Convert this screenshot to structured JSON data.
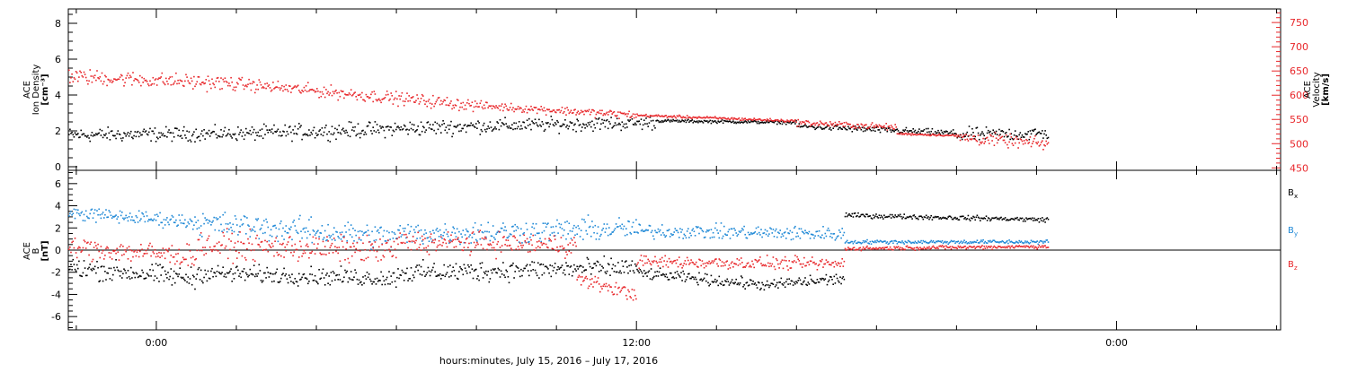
{
  "chart_data": [
    {
      "type": "scatter",
      "panel": "top",
      "ylabel_lines": [
        "ACE",
        "Ion Density"
      ],
      "ylabel_unit": "[cm⁻³]",
      "y2label_lines": [
        "ACE",
        "Velocity"
      ],
      "y2label_unit": "[km/s]",
      "ylim": [
        -0.2,
        8.8
      ],
      "y2lim": [
        445,
        778
      ],
      "yticks": [
        0,
        2,
        4,
        6,
        8
      ],
      "y2ticks": [
        450,
        500,
        550,
        600,
        650,
        700,
        750
      ],
      "series": [
        {
          "name": "ACE Ion Density",
          "axis": "left",
          "color": "#000000",
          "segments": [
            {
              "t": [
                -2.2,
                2.5
              ],
              "y": [
                1.8,
                1.9
              ],
              "noise": 0.55
            },
            {
              "t": [
                2.5,
                8.0
              ],
              "y": [
                1.9,
                2.3
              ],
              "noise": 0.6
            },
            {
              "t": [
                8.0,
                12.5
              ],
              "y": [
                2.3,
                2.5
              ],
              "noise": 0.55
            },
            {
              "t": [
                12.5,
                16.0
              ],
              "y": [
                2.6,
                2.5
              ],
              "noise": 0.12
            },
            {
              "t": [
                16.0,
                20.0
              ],
              "y": [
                2.3,
                1.9
              ],
              "noise": 0.25
            },
            {
              "t": [
                20.0,
                22.3
              ],
              "y": [
                1.8,
                1.9
              ],
              "noise": 0.55
            }
          ]
        },
        {
          "name": "ACE Velocity",
          "axis": "right",
          "color": "#e8262a",
          "segments": [
            {
              "t": [
                -2.2,
                2.0
              ],
              "y": [
                640,
                625
              ],
              "noise": 22
            },
            {
              "t": [
                2.0,
                8.0
              ],
              "y": [
                625,
                580
              ],
              "noise": 18
            },
            {
              "t": [
                8.0,
                12.0
              ],
              "y": [
                580,
                560
              ],
              "noise": 12
            },
            {
              "t": [
                12.0,
                16.0
              ],
              "y": [
                560,
                548
              ],
              "noise": 4
            },
            {
              "t": [
                16.0,
                18.5
              ],
              "y": [
                545,
                535
              ],
              "noise": 9
            },
            {
              "t": [
                18.5,
                20.0
              ],
              "y": [
                522,
                518
              ],
              "noise": 3
            },
            {
              "t": [
                20.0,
                22.3
              ],
              "y": [
                515,
                500
              ],
              "noise": 18
            }
          ]
        }
      ]
    },
    {
      "type": "scatter",
      "panel": "bottom",
      "ylabel_lines": [
        "ACE",
        "B"
      ],
      "ylabel_unit": "[nT]",
      "ylim": [
        -7.2,
        7.2
      ],
      "yticks": [
        -6,
        -4,
        -2,
        0,
        2,
        4,
        6
      ],
      "zero_line": true,
      "series": [
        {
          "name": "B",
          "subscript": "x",
          "color": "#000000",
          "segments": [
            {
              "t": [
                -2.2,
                1.0
              ],
              "y": [
                -1.5,
                -2.5
              ],
              "noise": 1.3
            },
            {
              "t": [
                1.0,
                6.0
              ],
              "y": [
                -2.0,
                -2.5
              ],
              "noise": 1.1
            },
            {
              "t": [
                6.0,
                12.0
              ],
              "y": [
                -2.0,
                -1.5
              ],
              "noise": 1.3
            },
            {
              "t": [
                12.0,
                15.5
              ],
              "y": [
                -2.0,
                -3.2
              ],
              "noise": 0.7
            },
            {
              "t": [
                15.5,
                17.2
              ],
              "y": [
                -3.0,
                -2.5
              ],
              "noise": 0.8
            },
            {
              "t": [
                17.2,
                22.3
              ],
              "y": [
                3.2,
                2.8
              ],
              "noise": 0.3
            }
          ]
        },
        {
          "name": "B",
          "subscript": "y",
          "color": "#1e88d6",
          "segments": [
            {
              "t": [
                -2.2,
                1.0
              ],
              "y": [
                3.4,
                2.6
              ],
              "noise": 0.9
            },
            {
              "t": [
                1.0,
                6.0
              ],
              "y": [
                2.5,
                1.2
              ],
              "noise": 1.6
            },
            {
              "t": [
                6.0,
                12.0
              ],
              "y": [
                1.5,
                2.0
              ],
              "noise": 1.5
            },
            {
              "t": [
                12.0,
                17.2
              ],
              "y": [
                1.8,
                1.5
              ],
              "noise": 0.9
            },
            {
              "t": [
                17.2,
                22.3
              ],
              "y": [
                0.8,
                0.8
              ],
              "noise": 0.25
            }
          ]
        },
        {
          "name": "B",
          "subscript": "z",
          "color": "#e8262a",
          "segments": [
            {
              "t": [
                -2.2,
                1.0
              ],
              "y": [
                0.3,
                -0.5
              ],
              "noise": 1.4
            },
            {
              "t": [
                1.0,
                6.0
              ],
              "y": [
                0.5,
                0.0
              ],
              "noise": 1.7
            },
            {
              "t": [
                6.0,
                10.5
              ],
              "y": [
                0.8,
                0.5
              ],
              "noise": 1.4
            },
            {
              "t": [
                10.5,
                12.0
              ],
              "y": [
                -2.5,
                -4.0
              ],
              "noise": 0.9
            },
            {
              "t": [
                12.0,
                17.2
              ],
              "y": [
                -1.0,
                -1.2
              ],
              "noise": 0.8
            },
            {
              "t": [
                17.2,
                22.3
              ],
              "y": [
                0.2,
                0.4
              ],
              "noise": 0.25
            }
          ]
        }
      ]
    }
  ],
  "xaxis": {
    "label": "hours:minutes, July 15, 2016 – July 17, 2016",
    "range_hours": [
      -2.2,
      28.1
    ],
    "major_ticks": [
      {
        "t": 0,
        "label": "0:00"
      },
      {
        "t": 12,
        "label": "12:00"
      },
      {
        "t": 24,
        "label": "0:00"
      }
    ],
    "minor_step_hours": 2
  }
}
